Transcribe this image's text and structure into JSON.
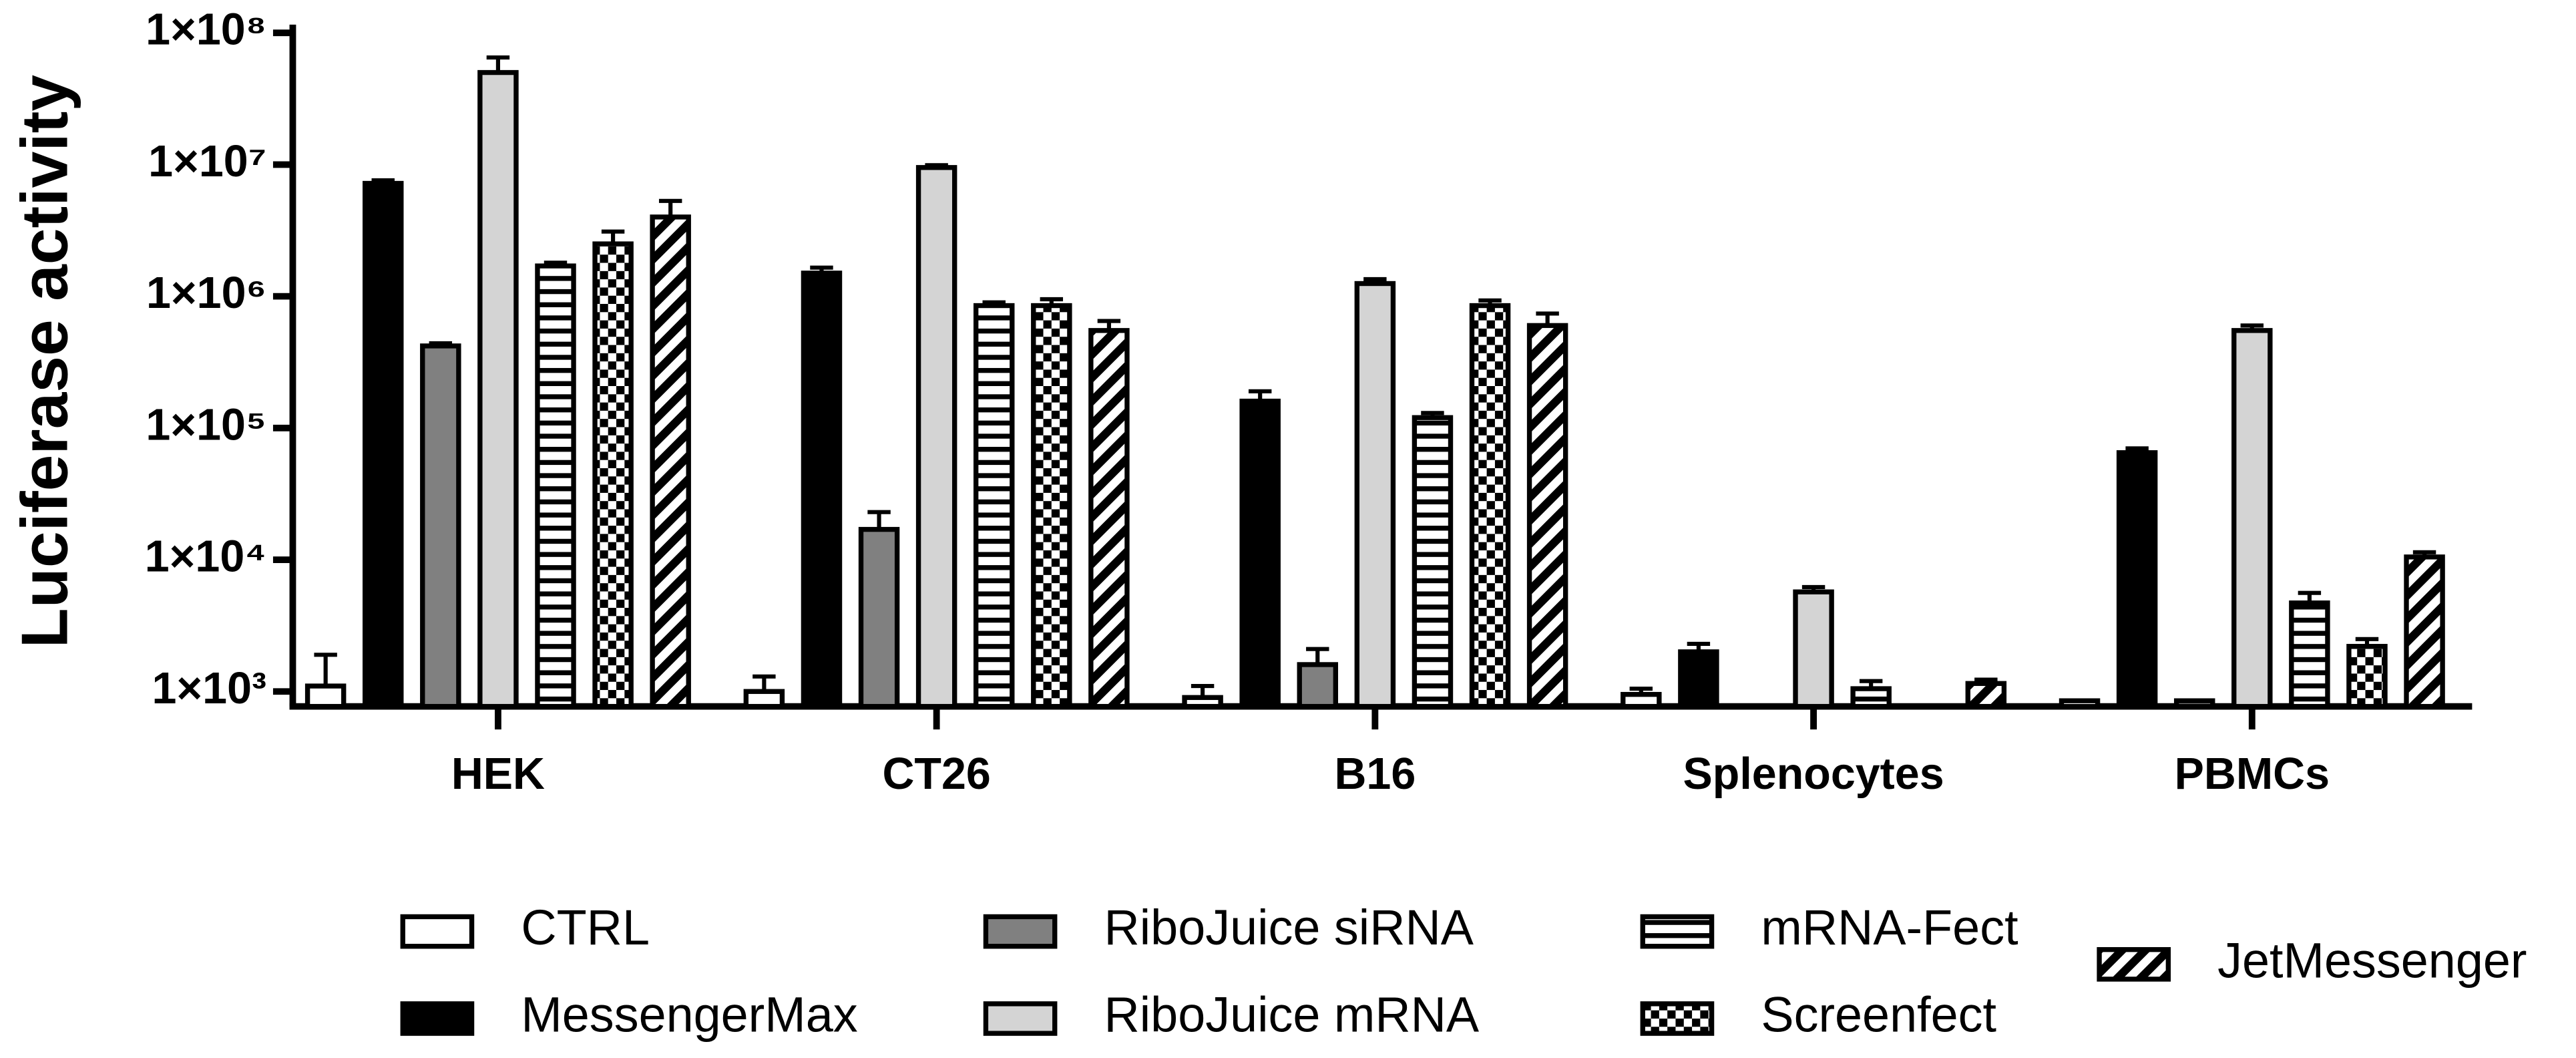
{
  "chart_data": {
    "type": "bar",
    "ylabel": "Luciferase activity",
    "log_scale": true,
    "categories": [
      "HEK",
      "CT26",
      "B16",
      "Splenocytes",
      "PBMCs"
    ],
    "ylim": [
      770,
      100000000
    ],
    "yticks": [
      {
        "value": 1000,
        "label": "1×10³"
      },
      {
        "value": 10000,
        "label": "1×10⁴"
      },
      {
        "value": 100000,
        "label": "1×10⁵"
      },
      {
        "value": 1000000,
        "label": "1×10⁶"
      },
      {
        "value": 10000000,
        "label": "1×10⁷"
      },
      {
        "value": 100000000,
        "label": "1×10⁸"
      }
    ],
    "series": [
      {
        "name": "CTRL",
        "color": "#ffffff",
        "pattern": "solid",
        "values": [
          1100,
          1000,
          900,
          950,
          850
        ],
        "errors": [
          800,
          300,
          200,
          100,
          null
        ]
      },
      {
        "name": "MessengerMax",
        "color": "#000000",
        "pattern": "solid",
        "values": [
          7200000,
          1500000,
          160000,
          2000,
          65000
        ],
        "errors": [
          400000,
          150000,
          30000,
          300,
          5000
        ]
      },
      {
        "name": "RiboJuice siRNA",
        "color": "#808080",
        "pattern": "solid",
        "values": [
          420000,
          17000,
          1600,
          null,
          850
        ],
        "errors": [
          20000,
          6000,
          500,
          null,
          null
        ]
      },
      {
        "name": "RiboJuice mRNA",
        "color": "#d4d4d4",
        "pattern": "solid",
        "values": [
          50000000,
          9500000,
          1250000,
          5700,
          550000
        ],
        "errors": [
          15000000,
          400000,
          100000,
          500,
          50000
        ]
      },
      {
        "name": "mRNA-Fect",
        "color": "#000000",
        "pattern": "hlines",
        "values": [
          1700000,
          850000,
          120000,
          1050,
          4700
        ],
        "errors": [
          100000,
          50000,
          10000,
          150,
          900
        ]
      },
      {
        "name": "Screenfect",
        "color": "#000000",
        "pattern": "checker",
        "values": [
          2500000,
          850000,
          850000,
          null,
          2200
        ],
        "errors": [
          600000,
          100000,
          80000,
          null,
          300
        ]
      },
      {
        "name": "JetMessenger",
        "color": "#000000",
        "pattern": "diagonal",
        "values": [
          4000000,
          550000,
          600000,
          1150,
          10500
        ],
        "errors": [
          1300000,
          100000,
          140000,
          80,
          900
        ]
      }
    ]
  }
}
